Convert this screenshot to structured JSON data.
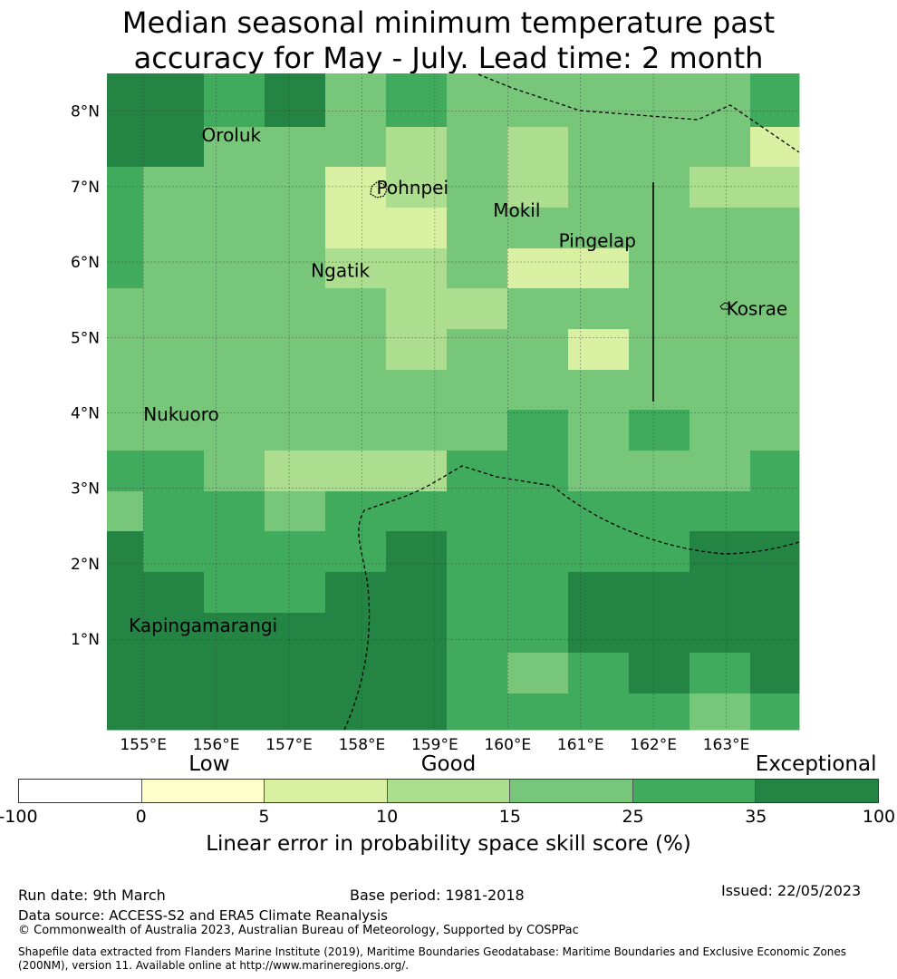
{
  "title_line1": "Median seasonal minimum temperature past",
  "title_line2": "accuracy for May - July. Lead time: 2 month",
  "map": {
    "lon_range": [
      154.5,
      164.0
    ],
    "lat_range": [
      -0.2,
      8.5
    ],
    "lon_ticks": [
      {
        "value": 155,
        "label": "155°E"
      },
      {
        "value": 156,
        "label": "156°E"
      },
      {
        "value": 157,
        "label": "157°E"
      },
      {
        "value": 158,
        "label": "158°E"
      },
      {
        "value": 159,
        "label": "159°E"
      },
      {
        "value": 160,
        "label": "160°E"
      },
      {
        "value": 161,
        "label": "161°E"
      },
      {
        "value": 162,
        "label": "162°E"
      },
      {
        "value": 163,
        "label": "163°E"
      }
    ],
    "lat_ticks": [
      {
        "value": 8,
        "label": "8°N"
      },
      {
        "value": 7,
        "label": "7°N"
      },
      {
        "value": 6,
        "label": "6°N"
      },
      {
        "value": 5,
        "label": "5°N"
      },
      {
        "value": 4,
        "label": "4°N"
      },
      {
        "value": 3,
        "label": "3°N"
      },
      {
        "value": 2,
        "label": "2°N"
      },
      {
        "value": 1,
        "label": "1°N"
      }
    ],
    "places": [
      {
        "name": "Oroluk",
        "lon": 155.8,
        "lat": 7.6
      },
      {
        "name": "Pohnpei",
        "lon": 158.2,
        "lat": 6.9
      },
      {
        "name": "Mokil",
        "lon": 159.8,
        "lat": 6.6
      },
      {
        "name": "Pingelap",
        "lon": 160.7,
        "lat": 6.2
      },
      {
        "name": "Ngatik",
        "lon": 157.3,
        "lat": 5.8
      },
      {
        "name": "Kosrae",
        "lon": 163.0,
        "lat": 5.3
      },
      {
        "name": "Nukuoro",
        "lon": 155.0,
        "lat": 3.9
      },
      {
        "name": "Kapingamarangi",
        "lon": 154.8,
        "lat": 1.1
      }
    ]
  },
  "colorbar": {
    "categories": [
      {
        "label": "Low",
        "position": 0.222
      },
      {
        "label": "Good",
        "position": 0.5
      },
      {
        "label": "Exceptional",
        "position": 0.927
      }
    ],
    "ticks": [
      "-100",
      "0",
      "5",
      "10",
      "15",
      "25",
      "35",
      "100"
    ],
    "colors": [
      "#ffffff",
      "#ffffcc",
      "#d9f0a3",
      "#addd8e",
      "#78c679",
      "#41ab5d",
      "#238443"
    ],
    "title": "Linear error in probability space skill score (%)"
  },
  "footer": {
    "run_date": "Run date: 9th March",
    "base_period": "Base period: 1981-2018",
    "issued": "Issued: 22/05/2023",
    "data_source": "Data source: ACCESS-S2 and ERA5 Climate Reanalysis",
    "copyright": "© Commonwealth of Australia 2023, Australian Bureau of Meteorology, Supported by COSPPac",
    "shapefile": "Shapefile data extracted from Flanders Marine Institute (2019), Maritime Boundaries Geodatabase: Maritime Boundaries and Exclusive Economic Zones (200NM), version 11. Available online at http://www.marineregions.org/."
  }
}
